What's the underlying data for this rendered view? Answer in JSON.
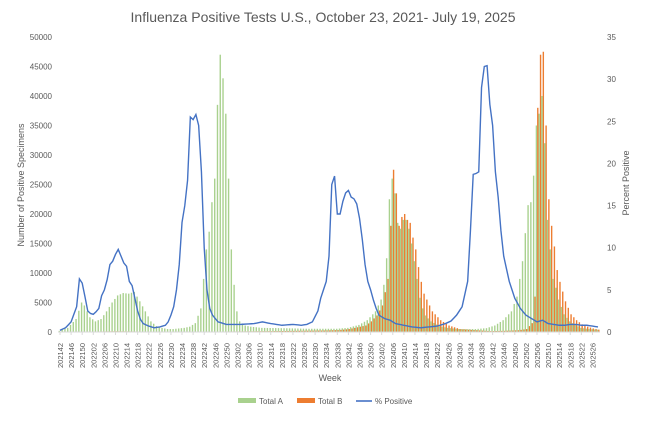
{
  "chart_data": {
    "type": "bar",
    "title": "Influenza Positive Tests U.S., October 23, 2021- July 19, 2025",
    "xlabel": "Week",
    "ylabel": "Number of Positive Specimens",
    "y2label": "Percent Positive",
    "ylim": [
      0,
      50000
    ],
    "y2lim": [
      0,
      35
    ],
    "yticks": [
      "0",
      "5000",
      "10000",
      "15000",
      "20000",
      "25000",
      "30000",
      "35000",
      "40000",
      "45000",
      "50000"
    ],
    "y2ticks": [
      "0",
      "5",
      "10",
      "15",
      "20",
      "25",
      "30",
      "35"
    ],
    "grid": false,
    "legend_position": "bottom",
    "colors": {
      "total_a": "#a9d18e",
      "total_b": "#ed7d31",
      "pct_positive": "#4472c4",
      "axis": "#d9d9d9",
      "text": "#595959"
    },
    "x_tick_labels": [
      "202142",
      "202146",
      "202150",
      "202202",
      "202206",
      "202210",
      "202214",
      "202218",
      "202222",
      "202226",
      "202230",
      "202234",
      "202238",
      "202242",
      "202246",
      "202250",
      "202302",
      "202306",
      "202310",
      "202314",
      "202318",
      "202322",
      "202326",
      "202330",
      "202334",
      "202338",
      "202342",
      "202346",
      "202350",
      "202402",
      "202406",
      "202410",
      "202414",
      "202418",
      "202422",
      "202426",
      "202430",
      "202434",
      "202438",
      "202442",
      "202446",
      "202450",
      "202502",
      "202506",
      "202510",
      "202514",
      "202518",
      "202522",
      "202526"
    ],
    "week_count": 195,
    "series": [
      {
        "name": "Total A",
        "kind": "bar",
        "anchors": [
          [
            0,
            200
          ],
          [
            3,
            700
          ],
          [
            6,
            2200
          ],
          [
            8,
            5000
          ],
          [
            9,
            4500
          ],
          [
            11,
            2500
          ],
          [
            13,
            1800
          ],
          [
            15,
            2200
          ],
          [
            17,
            3500
          ],
          [
            19,
            5000
          ],
          [
            21,
            6200
          ],
          [
            23,
            6600
          ],
          [
            25,
            6500
          ],
          [
            27,
            6800
          ],
          [
            29,
            5200
          ],
          [
            31,
            3500
          ],
          [
            33,
            1800
          ],
          [
            35,
            1000
          ],
          [
            37,
            700
          ],
          [
            39,
            500
          ],
          [
            41,
            500
          ],
          [
            43,
            600
          ],
          [
            45,
            700
          ],
          [
            47,
            900
          ],
          [
            49,
            1500
          ],
          [
            51,
            4000
          ],
          [
            52,
            9000
          ],
          [
            53,
            14000
          ],
          [
            54,
            17000
          ],
          [
            55,
            22000
          ],
          [
            56,
            26000
          ],
          [
            57,
            38500
          ],
          [
            58,
            47000
          ],
          [
            59,
            43000
          ],
          [
            60,
            37000
          ],
          [
            61,
            26000
          ],
          [
            62,
            14000
          ],
          [
            63,
            8000
          ],
          [
            64,
            3500
          ],
          [
            65,
            1800
          ],
          [
            67,
            1100
          ],
          [
            69,
            900
          ],
          [
            73,
            700
          ],
          [
            80,
            650
          ],
          [
            90,
            550
          ],
          [
            100,
            550
          ],
          [
            104,
            700
          ],
          [
            108,
            1200
          ],
          [
            111,
            2000
          ],
          [
            114,
            3500
          ],
          [
            116,
            5500
          ],
          [
            117,
            8000
          ],
          [
            118,
            12500
          ],
          [
            119,
            22500
          ],
          [
            120,
            26000
          ],
          [
            121,
            23500
          ],
          [
            122,
            18500
          ],
          [
            123,
            17500
          ],
          [
            124,
            19000
          ],
          [
            125,
            19000
          ],
          [
            126,
            17500
          ],
          [
            127,
            15000
          ],
          [
            128,
            12000
          ],
          [
            129,
            9000
          ],
          [
            130,
            5800
          ],
          [
            131,
            4000
          ],
          [
            132,
            2800
          ],
          [
            134,
            1800
          ],
          [
            137,
            1000
          ],
          [
            140,
            700
          ],
          [
            144,
            500
          ],
          [
            150,
            500
          ],
          [
            154,
            650
          ],
          [
            157,
            1100
          ],
          [
            160,
            2000
          ],
          [
            163,
            3500
          ],
          [
            165,
            6000
          ],
          [
            167,
            12000
          ],
          [
            169,
            21500
          ],
          [
            170,
            22000
          ],
          [
            171,
            26500
          ],
          [
            172,
            35000
          ],
          [
            173,
            37000
          ],
          [
            174,
            40000
          ],
          [
            175,
            32000
          ],
          [
            176,
            19000
          ],
          [
            177,
            14000
          ],
          [
            178,
            9000
          ],
          [
            179,
            7500
          ],
          [
            180,
            5500
          ],
          [
            182,
            3000
          ],
          [
            184,
            1800
          ],
          [
            186,
            1200
          ],
          [
            188,
            700
          ],
          [
            191,
            500
          ],
          [
            194,
            400
          ]
        ]
      },
      {
        "name": "Total B",
        "kind": "bar",
        "anchors": [
          [
            0,
            0
          ],
          [
            4,
            40
          ],
          [
            8,
            60
          ],
          [
            12,
            80
          ],
          [
            20,
            120
          ],
          [
            30,
            80
          ],
          [
            40,
            40
          ],
          [
            55,
            60
          ],
          [
            60,
            90
          ],
          [
            65,
            100
          ],
          [
            75,
            140
          ],
          [
            85,
            200
          ],
          [
            95,
            260
          ],
          [
            100,
            320
          ],
          [
            104,
            500
          ],
          [
            107,
            800
          ],
          [
            110,
            1100
          ],
          [
            112,
            1800
          ],
          [
            114,
            2800
          ],
          [
            116,
            4500
          ],
          [
            118,
            9000
          ],
          [
            119,
            18000
          ],
          [
            120,
            27500
          ],
          [
            121,
            23500
          ],
          [
            122,
            18000
          ],
          [
            123,
            19500
          ],
          [
            124,
            20000
          ],
          [
            125,
            19000
          ],
          [
            126,
            18500
          ],
          [
            127,
            16000
          ],
          [
            128,
            14000
          ],
          [
            129,
            11000
          ],
          [
            130,
            8500
          ],
          [
            131,
            6500
          ],
          [
            132,
            5500
          ],
          [
            134,
            3500
          ],
          [
            137,
            2000
          ],
          [
            140,
            1100
          ],
          [
            144,
            500
          ],
          [
            150,
            300
          ],
          [
            155,
            150
          ],
          [
            160,
            200
          ],
          [
            165,
            300
          ],
          [
            168,
            500
          ],
          [
            170,
            1500
          ],
          [
            171,
            6000
          ],
          [
            172,
            38000
          ],
          [
            173,
            47000
          ],
          [
            174,
            47500
          ],
          [
            175,
            35000
          ],
          [
            176,
            22500
          ],
          [
            177,
            18000
          ],
          [
            178,
            14500
          ],
          [
            179,
            10500
          ],
          [
            180,
            8500
          ],
          [
            182,
            5200
          ],
          [
            184,
            3000
          ],
          [
            186,
            2000
          ],
          [
            188,
            1300
          ],
          [
            190,
            900
          ],
          [
            192,
            600
          ],
          [
            194,
            400
          ]
        ]
      },
      {
        "name": "% Positive",
        "kind": "line",
        "axis": "y2",
        "anchors": [
          [
            0,
            0.2
          ],
          [
            2,
            0.5
          ],
          [
            4,
            1.2
          ],
          [
            6,
            3
          ],
          [
            7,
            6.3
          ],
          [
            8,
            5.8
          ],
          [
            9,
            4.2
          ],
          [
            10,
            2.5
          ],
          [
            11,
            2.2
          ],
          [
            12,
            2.1
          ],
          [
            13,
            2.4
          ],
          [
            14,
            2.8
          ],
          [
            15,
            4.3
          ],
          [
            16,
            5
          ],
          [
            17,
            6.2
          ],
          [
            18,
            8
          ],
          [
            19,
            8.4
          ],
          [
            20,
            9.2
          ],
          [
            21,
            9.8
          ],
          [
            22,
            9
          ],
          [
            23,
            8.2
          ],
          [
            24,
            7.8
          ],
          [
            25,
            6
          ],
          [
            26,
            5.5
          ],
          [
            27,
            4
          ],
          [
            28,
            2.5
          ],
          [
            29,
            1.5
          ],
          [
            30,
            1
          ],
          [
            32,
            0.7
          ],
          [
            34,
            0.5
          ],
          [
            36,
            0.6
          ],
          [
            38,
            0.8
          ],
          [
            39,
            1.2
          ],
          [
            40,
            2
          ],
          [
            41,
            3
          ],
          [
            42,
            5
          ],
          [
            43,
            8
          ],
          [
            44,
            13
          ],
          [
            45,
            15
          ],
          [
            46,
            18
          ],
          [
            47,
            25.5
          ],
          [
            48,
            25.2
          ],
          [
            49,
            25.8
          ],
          [
            50,
            24.5
          ],
          [
            51,
            19
          ],
          [
            52,
            10
          ],
          [
            53,
            5
          ],
          [
            54,
            2.8
          ],
          [
            55,
            2
          ],
          [
            57,
            1.2
          ],
          [
            60,
            0.9
          ],
          [
            65,
            0.9
          ],
          [
            70,
            1
          ],
          [
            73,
            1.2
          ],
          [
            76,
            1
          ],
          [
            80,
            0.8
          ],
          [
            84,
            0.9
          ],
          [
            87,
            0.8
          ],
          [
            89,
            0.9
          ],
          [
            91,
            1.2
          ],
          [
            93,
            2.5
          ],
          [
            94,
            4
          ],
          [
            95,
            5
          ],
          [
            96,
            6
          ],
          [
            97,
            9
          ],
          [
            98,
            17.5
          ],
          [
            99,
            18.5
          ],
          [
            100,
            14
          ],
          [
            101,
            14
          ],
          [
            102,
            15.5
          ],
          [
            103,
            16.5
          ],
          [
            104,
            16.8
          ],
          [
            105,
            16
          ],
          [
            106,
            15.8
          ],
          [
            107,
            15.2
          ],
          [
            108,
            13.5
          ],
          [
            109,
            11
          ],
          [
            110,
            8
          ],
          [
            111,
            6
          ],
          [
            112,
            5
          ],
          [
            113,
            3.8
          ],
          [
            114,
            2.8
          ],
          [
            115,
            2
          ],
          [
            117,
            1.6
          ],
          [
            119,
            1.4
          ],
          [
            121,
            1
          ],
          [
            124,
            0.8
          ],
          [
            127,
            0.6
          ],
          [
            130,
            0.5
          ],
          [
            133,
            0.6
          ],
          [
            136,
            0.7
          ],
          [
            139,
            1
          ],
          [
            141,
            1.3
          ],
          [
            143,
            2
          ],
          [
            145,
            3
          ],
          [
            147,
            6
          ],
          [
            148,
            12
          ],
          [
            149,
            18.7
          ],
          [
            150,
            18.8
          ],
          [
            151,
            19
          ],
          [
            152,
            29
          ],
          [
            153,
            31.5
          ],
          [
            154,
            31.6
          ],
          [
            155,
            27
          ],
          [
            156,
            24.5
          ],
          [
            157,
            19
          ],
          [
            158,
            16
          ],
          [
            159,
            12
          ],
          [
            160,
            9
          ],
          [
            161,
            7.5
          ],
          [
            162,
            6
          ],
          [
            164,
            4
          ],
          [
            166,
            2.8
          ],
          [
            168,
            2
          ],
          [
            170,
            1.6
          ],
          [
            172,
            1.2
          ],
          [
            174,
            1.4
          ],
          [
            176,
            1
          ],
          [
            178,
            0.9
          ],
          [
            180,
            0.8
          ],
          [
            182,
            0.8
          ],
          [
            184,
            0.9
          ],
          [
            186,
            0.9
          ],
          [
            188,
            0.8
          ],
          [
            190,
            0.8
          ],
          [
            192,
            0.7
          ],
          [
            194,
            0.6
          ]
        ]
      }
    ]
  }
}
